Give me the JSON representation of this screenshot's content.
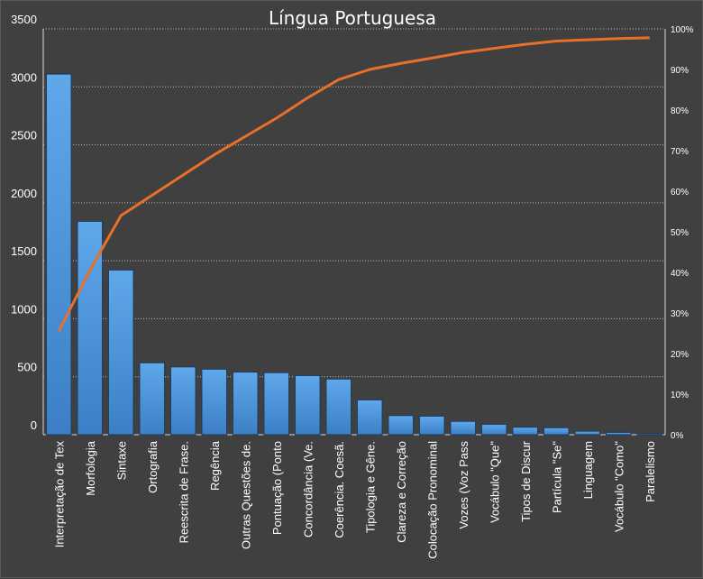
{
  "chart_data": {
    "type": "bar",
    "title": "Língua Portuguesa",
    "categories": [
      "Interpretação de Tex",
      "Morfologia",
      "Sintaxe",
      "Ortografia",
      "Reescrita de Frase.",
      "Regência",
      "Outras Questões de.",
      "Pontuação (Ponto",
      "Concordância (Ve.",
      "Coerência. Coesã.",
      "Tipologia e Gêne.",
      "Clareza e Correção",
      "Colocação Pronominal",
      "Vozes (Voz Pass",
      "Vocábulo \"Que\"",
      "Tipos de Discur",
      "Partícula \"Se\"",
      "Linguagem",
      "Vocábulo \"Como\"",
      "Paralelismo"
    ],
    "series": [
      {
        "type": "bar",
        "values": [
          3110,
          1840,
          1420,
          620,
          585,
          565,
          540,
          535,
          510,
          480,
          300,
          165,
          160,
          115,
          90,
          65,
          60,
          30,
          20,
          10
        ],
        "color": "#4a90d9"
      },
      {
        "type": "line",
        "axis": "right",
        "values": [
          0.255,
          0.405,
          0.54,
          0.59,
          0.64,
          0.69,
          0.735,
          0.78,
          0.83,
          0.875,
          0.9,
          0.915,
          0.928,
          0.942,
          0.952,
          0.962,
          0.97,
          0.973,
          0.976,
          0.978
        ],
        "color": "#e8702a"
      }
    ],
    "yleft": {
      "ylim": [
        0,
        3500
      ],
      "ticks": [
        0,
        500,
        1000,
        1500,
        2000,
        2500,
        3000,
        3500
      ]
    },
    "yright": {
      "ylim": [
        0,
        1
      ],
      "ticks": [
        0,
        0.1,
        0.2,
        0.3,
        0.4,
        0.5,
        0.6,
        0.7,
        0.8,
        0.9,
        1.0
      ],
      "tick_labels": [
        "0%",
        "10%",
        "20%",
        "30%",
        "40%",
        "50%",
        "60%",
        "70%",
        "80%",
        "90%",
        "100%"
      ]
    },
    "grid": true,
    "legend": "none"
  }
}
